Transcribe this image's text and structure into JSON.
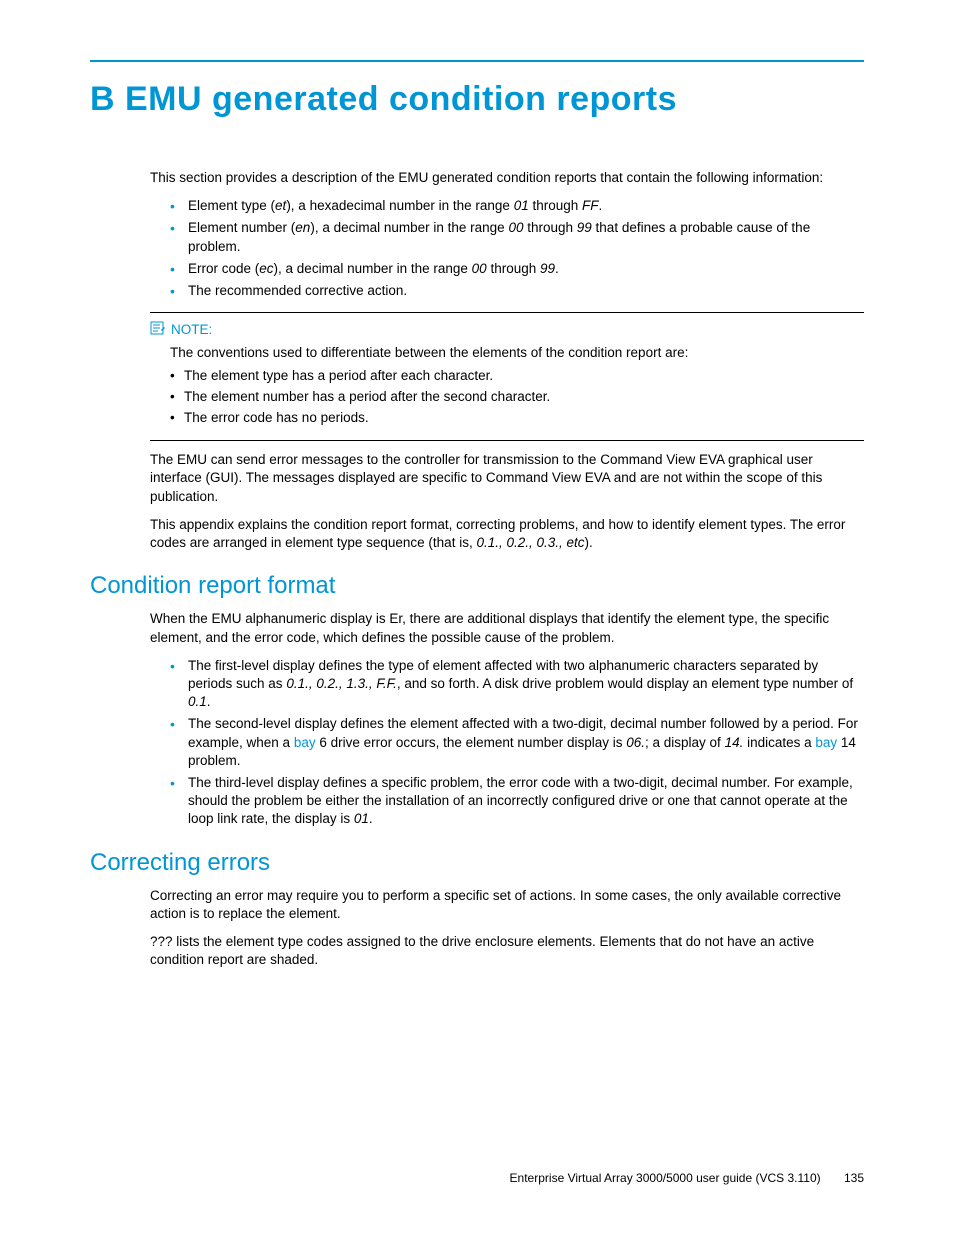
{
  "colors": {
    "accent": "#0096d6",
    "text": "#000000",
    "background": "#ffffff"
  },
  "fonts": {
    "body_size_pt": 10,
    "h1_size_pt": 26,
    "h2_size_pt": 18
  },
  "title": "B EMU generated condition reports",
  "intro": "This section provides a description of the EMU generated condition reports that contain the following information:",
  "intro_bullets": [
    {
      "pre": "Element type (",
      "italic1": "et",
      "mid1": "), a hexadecimal number in the range ",
      "italic2": "01",
      "mid2": " through ",
      "italic3": "FF",
      "post": "."
    },
    {
      "pre": "Element number (",
      "italic1": "en",
      "mid1": "), a decimal number in the range ",
      "italic2": "00",
      "mid2": " through ",
      "italic3": "99",
      "post": " that defines a probable cause of the problem."
    },
    {
      "pre": "Error code (",
      "italic1": "ec",
      "mid1": "), a decimal number in the range ",
      "italic2": "00",
      "mid2": " through ",
      "italic3": "99",
      "post": "."
    },
    {
      "pre": "The recommended corrective action.",
      "italic1": "",
      "mid1": "",
      "italic2": "",
      "mid2": "",
      "italic3": "",
      "post": ""
    }
  ],
  "note": {
    "label": "NOTE:",
    "text": "The conventions used to differentiate between the elements of the condition report are:",
    "items": [
      "The element type has a period after each character.",
      "The element number has a period after the second character.",
      "The error code has no periods."
    ]
  },
  "para1": "The EMU can send error messages to the controller for transmission to the Command View EVA graphical user interface (GUI). The messages displayed are specific to Command View EVA and are not within the scope of this publication.",
  "para2_pre": "This appendix explains the condition report format, correcting problems, and how to identify element types. The error codes are arranged in element type sequence (that is, ",
  "para2_italic": "0.1., 0.2., 0.3., etc",
  "para2_post": ").",
  "section1": {
    "heading": "Condition report format",
    "intro": "When the EMU alphanumeric display is Er, there are additional displays that identify the element type, the specific element, and the error code, which defines the possible cause of the problem.",
    "bullets": [
      {
        "parts": [
          {
            "t": "The first-level display defines the type of element affected with two alphanumeric characters separated by periods such as "
          },
          {
            "t": "0.1., 0.2., 1.3., F.F.",
            "i": true
          },
          {
            "t": ", and so forth. A disk drive problem would display an element type number of "
          },
          {
            "t": "0.1",
            "i": true
          },
          {
            "t": "."
          }
        ]
      },
      {
        "parts": [
          {
            "t": "The second-level display defines the element affected with a two-digit, decimal number followed by a period. For example, when a "
          },
          {
            "t": "bay",
            "link": true
          },
          {
            "t": " 6 drive error occurs, the element number display is "
          },
          {
            "t": "06.",
            "i": true
          },
          {
            "t": "; a display of "
          },
          {
            "t": "14.",
            "i": true
          },
          {
            "t": " indicates a "
          },
          {
            "t": "bay",
            "link": true
          },
          {
            "t": " 14 problem."
          }
        ]
      },
      {
        "parts": [
          {
            "t": "The third-level display defines a specific problem, the error code with a two-digit, decimal number. For example, should the problem be either the installation of an incorrectly configured drive or one that cannot operate at the loop link rate, the display is "
          },
          {
            "t": "01",
            "i": true
          },
          {
            "t": "."
          }
        ]
      }
    ]
  },
  "section2": {
    "heading": "Correcting errors",
    "para1": "Correcting an error may require you to perform a specific set of actions. In some cases, the only available corrective action is to replace the element.",
    "para2": "??? lists the element type codes assigned to the drive enclosure elements. Elements that do not have an active condition report are shaded."
  },
  "footer": {
    "text": "Enterprise Virtual Array 3000/5000 user guide (VCS 3.110)",
    "page": "135"
  }
}
